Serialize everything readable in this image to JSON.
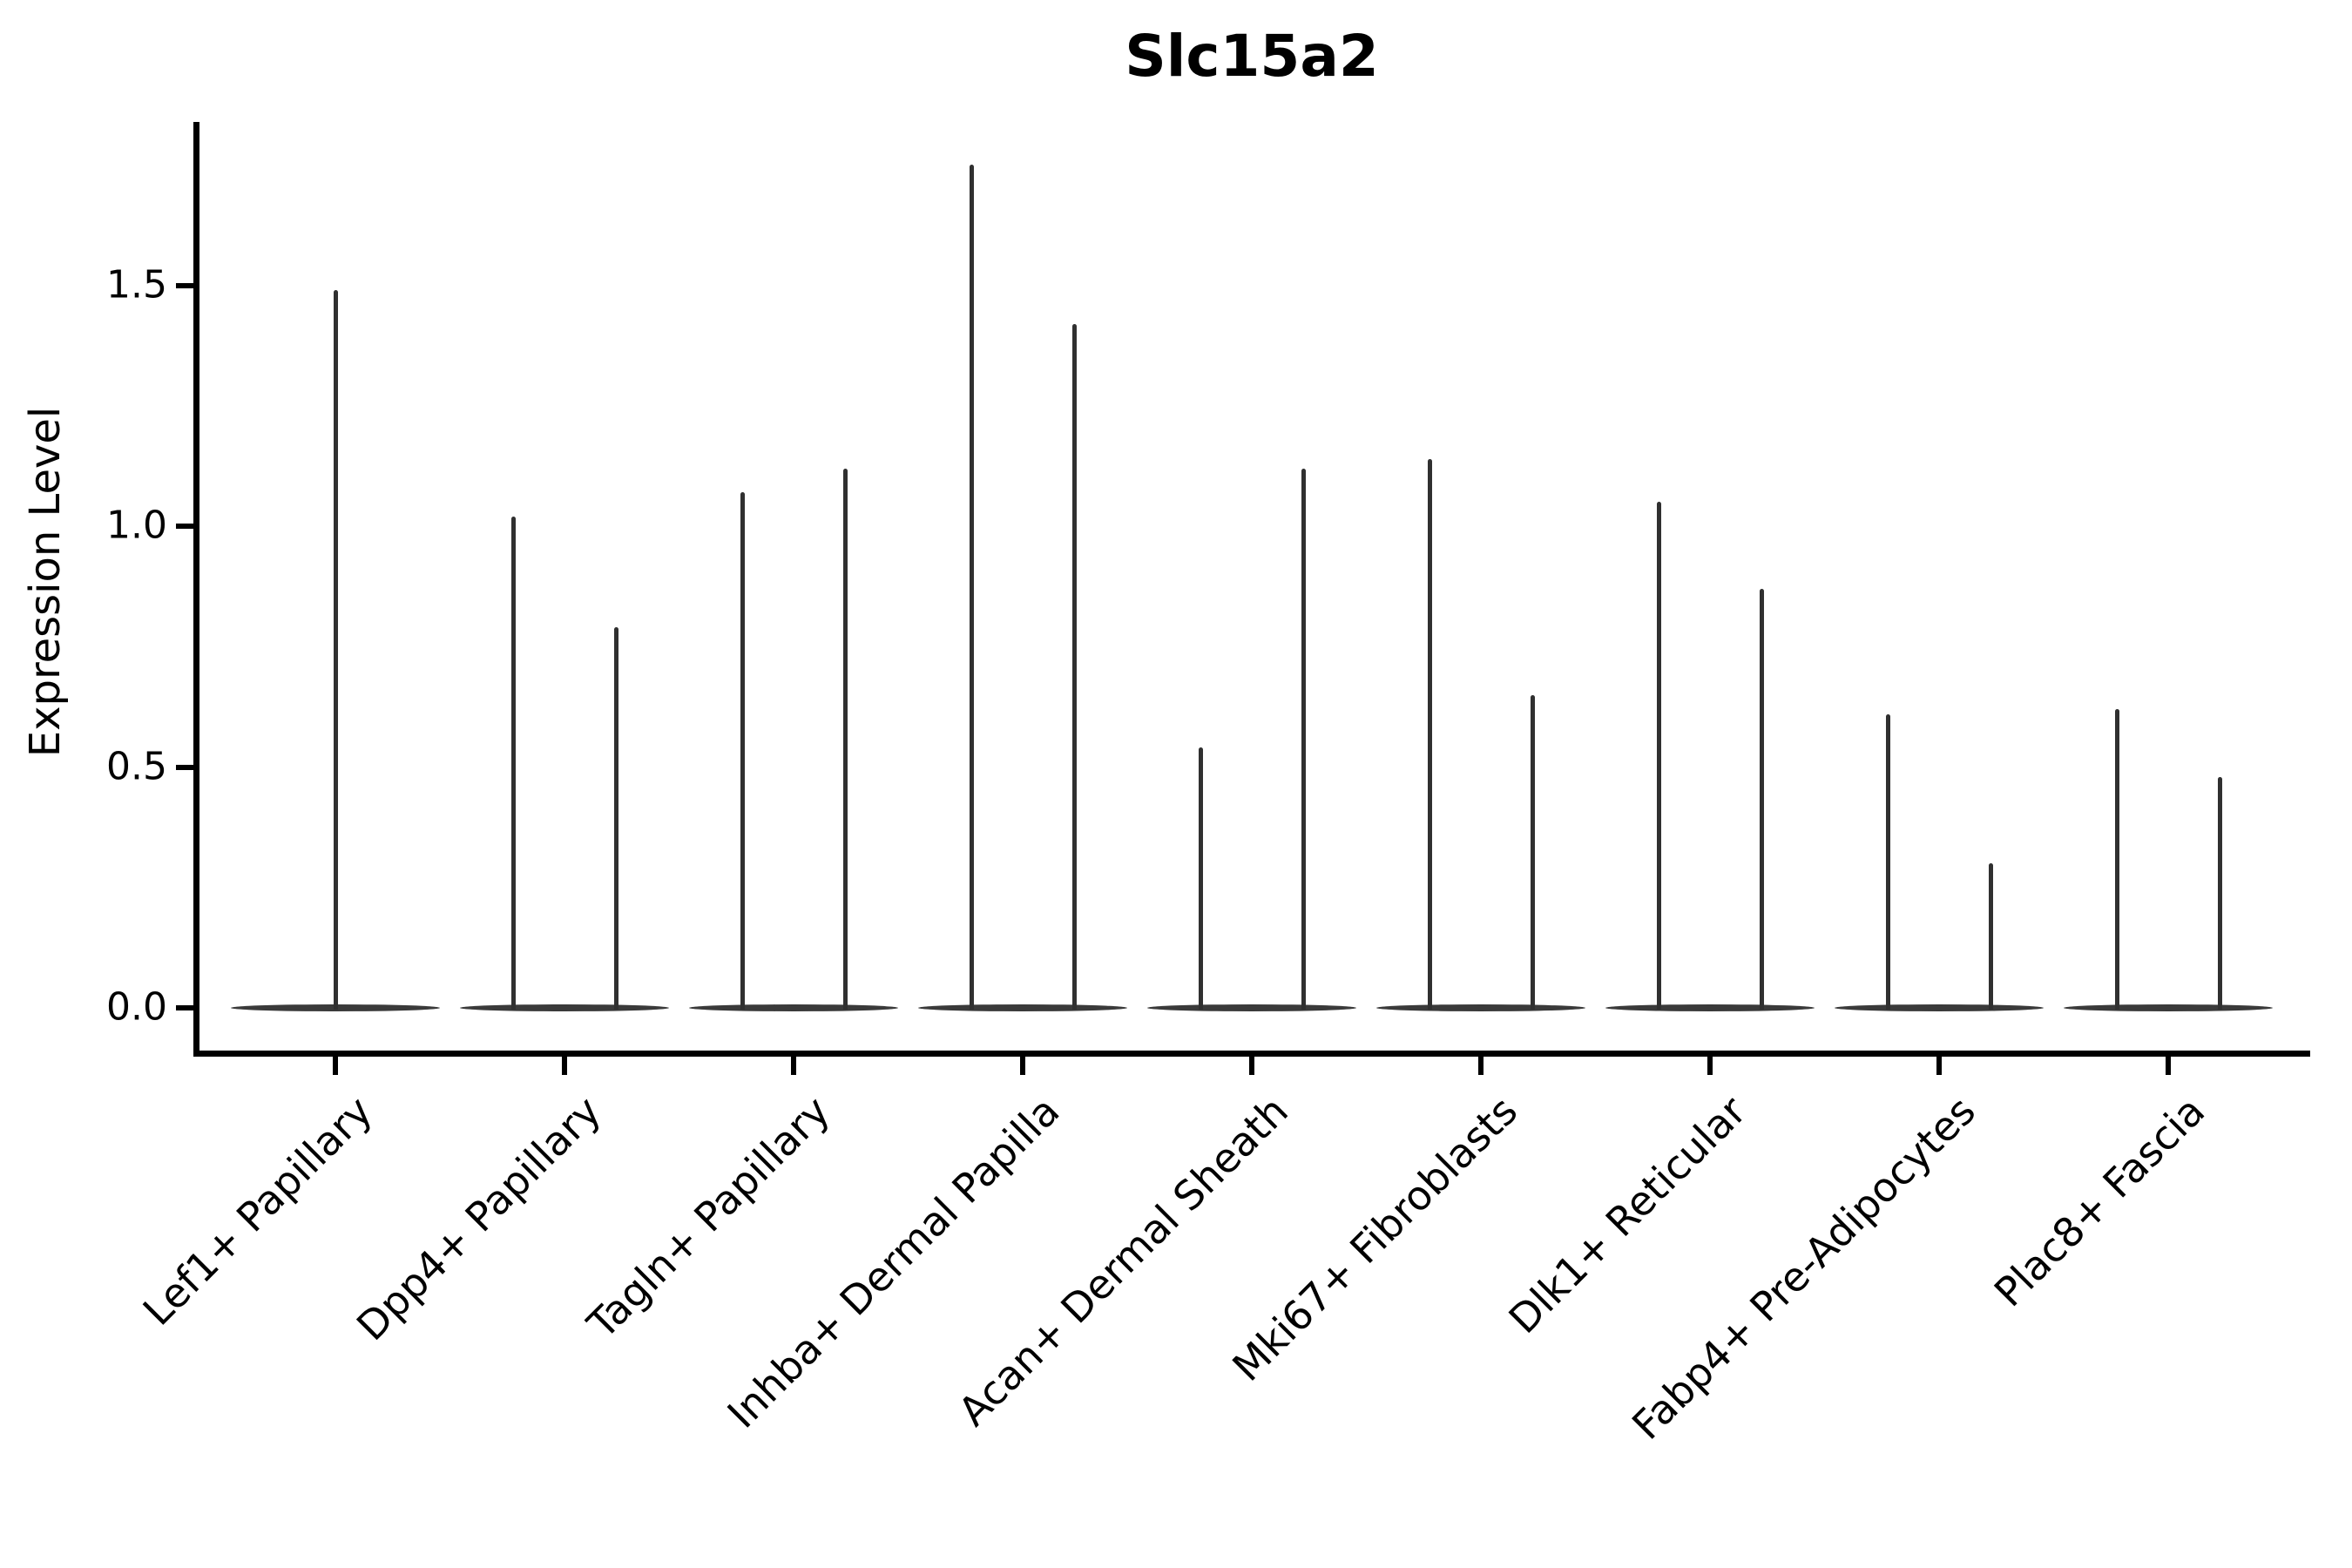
{
  "title": "Slc15a2",
  "axes": {
    "ylabel": "Expression Level",
    "ytick_labels": [
      "0.0",
      "0.5",
      "1.0",
      "1.5"
    ],
    "ytick_values": [
      0,
      0.5,
      1.0,
      1.5
    ]
  },
  "colors": {
    "background": "#ffffff",
    "axis": "#000000",
    "text": "#000000",
    "violin_outline": "#303030",
    "violin_base": "#3a3a3a"
  },
  "chart_data": {
    "type": "violin",
    "title": "Slc15a2",
    "xlabel": "",
    "ylabel": "Expression Level",
    "ylim": [
      -0.09,
      1.84
    ],
    "yticks": [
      0,
      0.5,
      1.0,
      1.5
    ],
    "grid": false,
    "legend": "none",
    "categories": [
      "Lef1+ Papillary",
      "Dpp4+ Papillary",
      "Tagln+ Papillary",
      "Inhba+ Dermal Papilla",
      "Acan+ Dermal Sheath",
      "Mki67+ Fibroblasts",
      "Dlk1+ Reticular",
      "Fabp4+ Pre-Adipocytes",
      "Plac8+ Fascia"
    ],
    "series": [
      {
        "name": "Lef1+ Papillary",
        "violin_tail_maxima": [
          1.49
        ],
        "bulk_value": 0
      },
      {
        "name": "Dpp4+ Papillary",
        "violin_tail_maxima": [
          1.02,
          0.79
        ],
        "bulk_value": 0
      },
      {
        "name": "Tagln+ Papillary",
        "violin_tail_maxima": [
          1.07,
          1.12
        ],
        "bulk_value": 0
      },
      {
        "name": "Inhba+ Dermal Papilla",
        "violin_tail_maxima": [
          1.75,
          1.42
        ],
        "bulk_value": 0
      },
      {
        "name": "Acan+ Dermal Sheath",
        "violin_tail_maxima": [
          0.54,
          1.12
        ],
        "bulk_value": 0
      },
      {
        "name": "Mki67+ Fibroblasts",
        "violin_tail_maxima": [
          1.14,
          0.65
        ],
        "bulk_value": 0
      },
      {
        "name": "Dlk1+ Reticular",
        "violin_tail_maxima": [
          1.05,
          0.87
        ],
        "bulk_value": 0
      },
      {
        "name": "Fabp4+ Pre-Adipocytes",
        "violin_tail_maxima": [
          0.61,
          0.3
        ],
        "bulk_value": 0
      },
      {
        "name": "Plac8+ Fascia",
        "violin_tail_maxima": [
          0.62,
          0.48
        ],
        "bulk_value": 0
      }
    ],
    "description": "Violin plot of Slc15a2 expression per fibroblast subtype; each violin is a flat dense mass at 0 expression with thin vertical tails reaching the listed maxima (first category has a single central tail, the others have two tails)."
  }
}
